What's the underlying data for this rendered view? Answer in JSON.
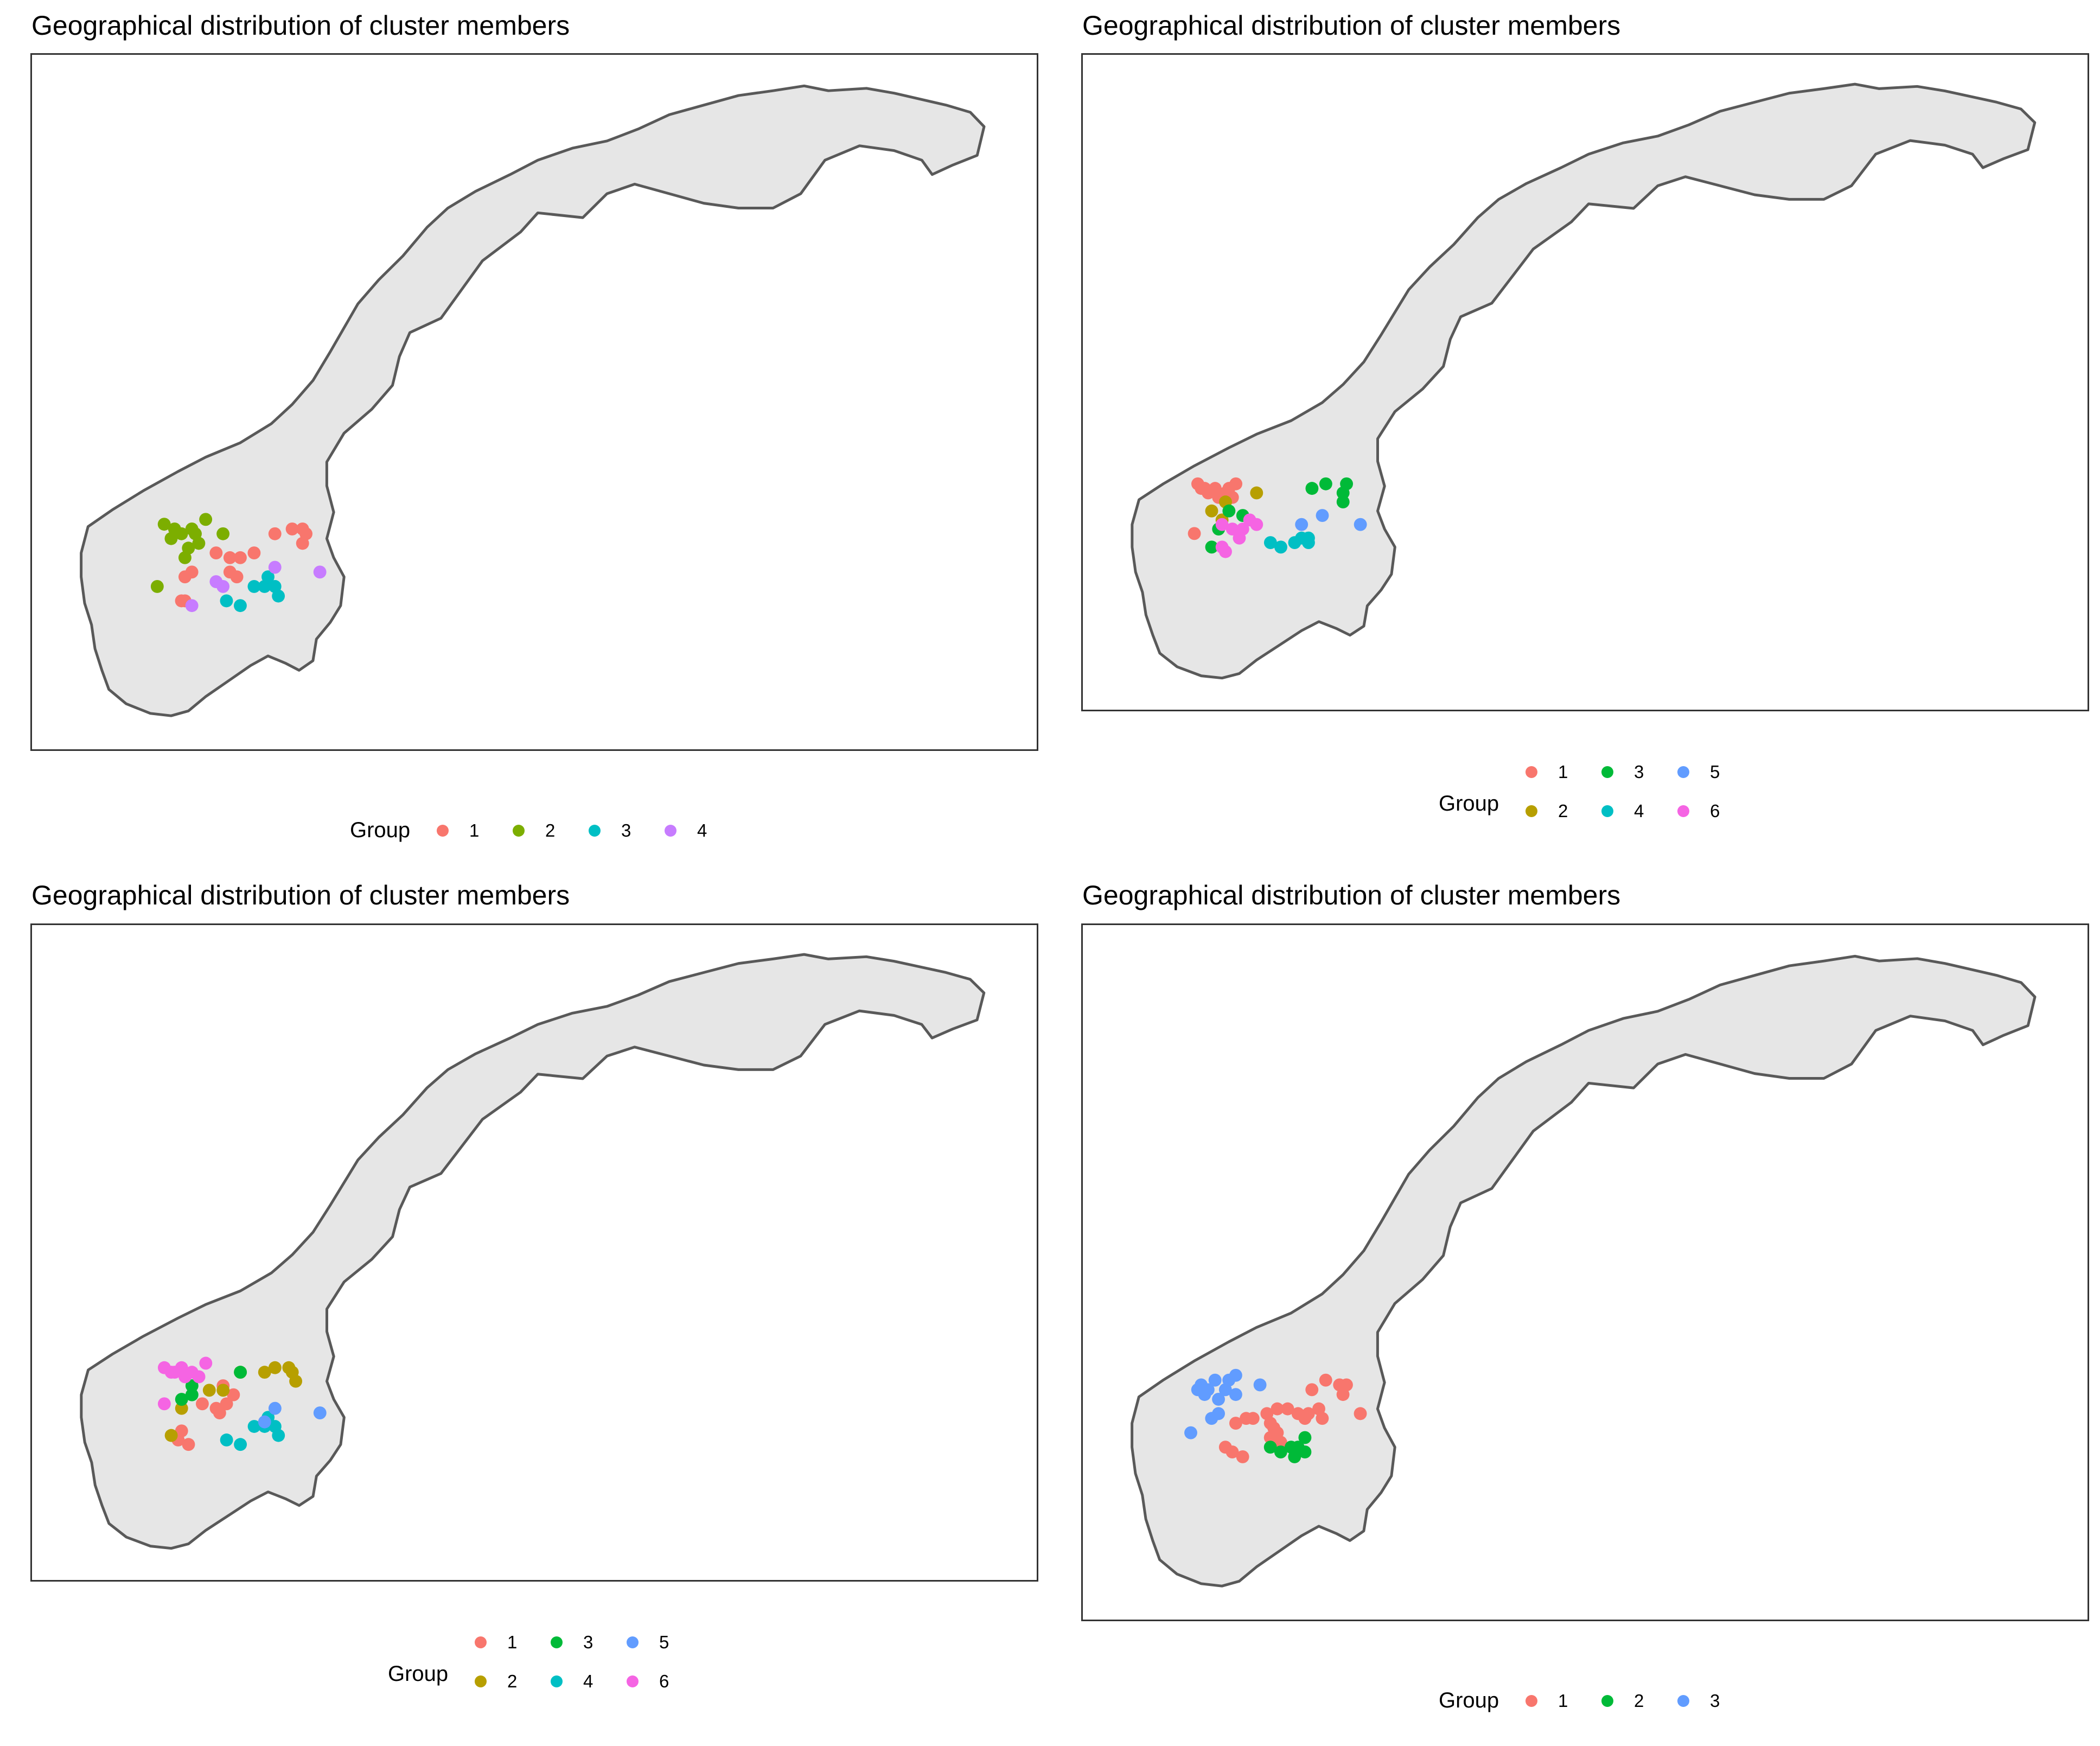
{
  "chart_data": [
    {
      "type": "scatter",
      "title": "Geographical distribution of cluster members",
      "basemap": "Norway",
      "legend": {
        "title": "Group",
        "placement": "bottom",
        "entries": [
          "1",
          "2",
          "3",
          "4"
        ]
      },
      "colors": {
        "1": "#F8766D",
        "2": "#7CAE00",
        "3": "#00BFC4",
        "4": "#C77CFF"
      },
      "series": [
        {
          "name": "1",
          "points": [
            [
              8.9,
              61.4
            ],
            [
              9.3,
              61.3
            ],
            [
              9.6,
              61.3
            ],
            [
              10.0,
              61.4
            ],
            [
              9.3,
              61.0
            ],
            [
              9.5,
              60.9
            ],
            [
              8.2,
              61.0
            ],
            [
              8.0,
              60.9
            ],
            [
              10.6,
              61.8
            ],
            [
              11.1,
              61.9
            ],
            [
              11.4,
              61.9
            ],
            [
              11.4,
              61.6
            ],
            [
              11.5,
              61.8
            ],
            [
              8.0,
              60.4
            ],
            [
              7.9,
              60.4
            ]
          ]
        },
        {
          "name": "2",
          "points": [
            [
              7.4,
              62.0
            ],
            [
              7.7,
              61.9
            ],
            [
              7.6,
              61.7
            ],
            [
              7.9,
              61.8
            ],
            [
              8.2,
              61.9
            ],
            [
              8.3,
              61.8
            ],
            [
              8.6,
              62.1
            ],
            [
              9.1,
              61.8
            ],
            [
              8.4,
              61.6
            ],
            [
              8.1,
              61.5
            ],
            [
              8.0,
              61.3
            ],
            [
              7.2,
              60.7
            ]
          ]
        },
        {
          "name": "3",
          "points": [
            [
              10.0,
              60.7
            ],
            [
              10.3,
              60.7
            ],
            [
              10.4,
              60.9
            ],
            [
              10.6,
              60.7
            ],
            [
              10.7,
              60.5
            ],
            [
              9.2,
              60.4
            ],
            [
              9.6,
              60.3
            ]
          ]
        },
        {
          "name": "4",
          "points": [
            [
              10.6,
              61.1
            ],
            [
              11.9,
              61.0
            ],
            [
              8.9,
              60.8
            ],
            [
              9.1,
              60.7
            ],
            [
              8.2,
              60.3
            ]
          ]
        }
      ]
    },
    {
      "type": "scatter",
      "title": "Geographical distribution of cluster members",
      "basemap": "Norway",
      "legend": {
        "title": "Group",
        "placement": "bottom",
        "entries": [
          "1",
          "2",
          "3",
          "4",
          "5",
          "6"
        ]
      },
      "colors": {
        "1": "#F8766D",
        "2": "#B79F00",
        "3": "#00BA38",
        "4": "#00BFC4",
        "5": "#619CFF",
        "6": "#F564E3"
      },
      "series": [
        {
          "name": "1",
          "points": [
            [
              6.9,
              62.3
            ],
            [
              7.0,
              62.2
            ],
            [
              7.1,
              62.2
            ],
            [
              7.2,
              62.1
            ],
            [
              7.4,
              62.2
            ],
            [
              7.5,
              62.0
            ],
            [
              7.7,
              62.1
            ],
            [
              7.8,
              62.2
            ],
            [
              7.9,
              62.0
            ],
            [
              8.0,
              62.3
            ],
            [
              6.8,
              61.2
            ]
          ]
        },
        {
          "name": "2",
          "points": [
            [
              7.7,
              61.9
            ],
            [
              7.6,
              61.5
            ],
            [
              7.3,
              61.7
            ],
            [
              8.6,
              62.1
            ]
          ]
        },
        {
          "name": "3",
          "points": [
            [
              7.8,
              61.7
            ],
            [
              8.2,
              61.6
            ],
            [
              10.2,
              62.2
            ],
            [
              10.6,
              62.3
            ],
            [
              11.2,
              62.3
            ],
            [
              11.1,
              62.1
            ],
            [
              11.1,
              61.9
            ],
            [
              7.5,
              61.3
            ],
            [
              7.3,
              60.9
            ]
          ]
        },
        {
          "name": "4",
          "points": [
            [
              9.0,
              61.0
            ],
            [
              9.3,
              60.9
            ],
            [
              9.7,
              61.0
            ],
            [
              9.9,
              61.1
            ],
            [
              10.1,
              61.1
            ],
            [
              10.1,
              61.0
            ]
          ]
        },
        {
          "name": "5",
          "points": [
            [
              10.5,
              61.6
            ],
            [
              11.6,
              61.4
            ],
            [
              9.9,
              61.4
            ]
          ]
        },
        {
          "name": "6",
          "points": [
            [
              7.6,
              61.4
            ],
            [
              7.9,
              61.3
            ],
            [
              8.2,
              61.3
            ],
            [
              8.6,
              61.4
            ],
            [
              8.4,
              61.5
            ],
            [
              8.1,
              61.1
            ],
            [
              7.6,
              60.9
            ],
            [
              7.7,
              60.8
            ]
          ]
        }
      ]
    },
    {
      "type": "scatter",
      "title": "Geographical distribution of cluster members",
      "basemap": "Norway",
      "legend": {
        "title": "Group",
        "placement": "bottom",
        "entries": [
          "1",
          "2",
          "3",
          "4",
          "5",
          "6"
        ]
      },
      "colors": {
        "1": "#F8766D",
        "2": "#B79F00",
        "3": "#00BA38",
        "4": "#00BFC4",
        "5": "#619CFF",
        "6": "#F564E3"
      },
      "series": [
        {
          "name": "1",
          "points": [
            [
              9.1,
              61.6
            ],
            [
              8.5,
              61.2
            ],
            [
              8.9,
              61.1
            ],
            [
              9.0,
              61.0
            ],
            [
              9.2,
              61.2
            ],
            [
              9.4,
              61.4
            ],
            [
              7.9,
              60.6
            ],
            [
              7.8,
              60.4
            ],
            [
              8.1,
              60.3
            ]
          ]
        },
        {
          "name": "2",
          "points": [
            [
              9.6,
              61.9
            ],
            [
              9.1,
              61.5
            ],
            [
              8.7,
              61.5
            ],
            [
              10.3,
              61.9
            ],
            [
              10.6,
              62.0
            ],
            [
              11.0,
              62.0
            ],
            [
              11.1,
              61.9
            ],
            [
              11.2,
              61.7
            ],
            [
              7.9,
              61.1
            ],
            [
              7.6,
              60.5
            ]
          ]
        },
        {
          "name": "3",
          "points": [
            [
              8.2,
              61.6
            ],
            [
              8.2,
              61.4
            ],
            [
              7.9,
              61.3
            ],
            [
              9.6,
              61.9
            ]
          ]
        },
        {
          "name": "4",
          "points": [
            [
              10.0,
              60.7
            ],
            [
              10.3,
              60.7
            ],
            [
              10.4,
              60.9
            ],
            [
              10.6,
              60.7
            ],
            [
              10.7,
              60.5
            ],
            [
              9.2,
              60.4
            ],
            [
              9.6,
              60.3
            ]
          ]
        },
        {
          "name": "5",
          "points": [
            [
              10.6,
              61.1
            ],
            [
              11.9,
              61.0
            ],
            [
              10.3,
              60.8
            ]
          ]
        },
        {
          "name": "6",
          "points": [
            [
              7.4,
              62.0
            ],
            [
              7.7,
              61.9
            ],
            [
              7.9,
              62.0
            ],
            [
              8.0,
              61.8
            ],
            [
              8.2,
              61.9
            ],
            [
              8.4,
              61.8
            ],
            [
              8.6,
              62.1
            ],
            [
              7.4,
              61.2
            ],
            [
              7.6,
              61.9
            ]
          ]
        }
      ]
    },
    {
      "type": "scatter",
      "title": "Geographical distribution of cluster members",
      "basemap": "Norway",
      "legend": {
        "title": "Group",
        "placement": "bottom",
        "entries": [
          "1",
          "2",
          "3"
        ]
      },
      "colors": {
        "1": "#F8766D",
        "2": "#00BA38",
        "3": "#619CFF"
      },
      "series": [
        {
          "name": "1",
          "points": [
            [
              10.2,
              62.1
            ],
            [
              10.6,
              62.3
            ],
            [
              11.0,
              62.2
            ],
            [
              11.2,
              62.2
            ],
            [
              11.1,
              62.0
            ],
            [
              11.6,
              61.6
            ],
            [
              9.5,
              61.7
            ],
            [
              9.8,
              61.6
            ],
            [
              10.0,
              61.5
            ],
            [
              10.1,
              61.6
            ],
            [
              10.4,
              61.7
            ],
            [
              9.0,
              61.4
            ],
            [
              9.1,
              61.3
            ],
            [
              8.3,
              61.5
            ],
            [
              8.5,
              61.5
            ],
            [
              9.0,
              61.1
            ],
            [
              9.2,
              61.2
            ],
            [
              9.3,
              61.0
            ],
            [
              7.7,
              60.9
            ],
            [
              7.9,
              60.8
            ],
            [
              8.2,
              60.7
            ],
            [
              10.5,
              61.5
            ],
            [
              8.9,
              61.6
            ],
            [
              9.2,
              61.7
            ],
            [
              8.0,
              61.4
            ]
          ]
        },
        {
          "name": "2",
          "points": [
            [
              9.0,
              60.9
            ],
            [
              9.3,
              60.8
            ],
            [
              9.6,
              60.9
            ],
            [
              9.8,
              60.9
            ],
            [
              10.0,
              61.1
            ],
            [
              10.0,
              60.8
            ],
            [
              9.7,
              60.7
            ]
          ]
        },
        {
          "name": "3",
          "points": [
            [
              7.0,
              62.2
            ],
            [
              7.2,
              62.1
            ],
            [
              7.4,
              62.3
            ],
            [
              7.7,
              62.1
            ],
            [
              7.8,
              62.3
            ],
            [
              8.0,
              62.4
            ],
            [
              6.9,
              62.1
            ],
            [
              7.1,
              62.0
            ],
            [
              7.5,
              61.9
            ],
            [
              8.0,
              62.0
            ],
            [
              8.7,
              62.2
            ],
            [
              7.5,
              61.6
            ],
            [
              7.3,
              61.5
            ],
            [
              6.7,
              61.2
            ]
          ]
        }
      ]
    }
  ]
}
